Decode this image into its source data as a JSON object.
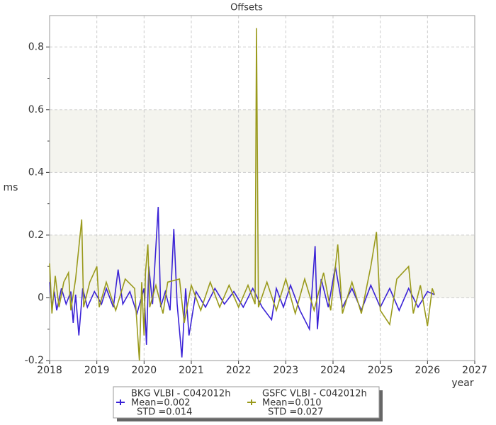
{
  "chart_data": {
    "type": "line",
    "title": "Offsets",
    "y_label": "ms",
    "x_label": "year",
    "xlim": [
      2018,
      2027
    ],
    "xticks": [
      2018,
      2019,
      2020,
      2021,
      2022,
      2023,
      2024,
      2025,
      2026,
      2027
    ],
    "ylim": [
      -0.2,
      0.9
    ],
    "yticks": [
      -0.2,
      0,
      0.2,
      0.4,
      0.6,
      0.8
    ],
    "grid": true,
    "series": [
      {
        "name": "BKG VLBI - C042012h",
        "mean_label": "Mean=0.002",
        "std_label": "STD =0.014",
        "color": "#3a22d6",
        "x": [
          2018.0,
          2018.05,
          2018.1,
          2018.15,
          2018.25,
          2018.35,
          2018.45,
          2018.5,
          2018.55,
          2018.62,
          2018.7,
          2018.8,
          2018.95,
          2019.1,
          2019.2,
          2019.35,
          2019.45,
          2019.55,
          2019.7,
          2019.85,
          2020.0,
          2020.05,
          2020.1,
          2020.18,
          2020.3,
          2020.35,
          2020.45,
          2020.55,
          2020.63,
          2020.7,
          2020.8,
          2020.88,
          2020.95,
          2021.1,
          2021.3,
          2021.5,
          2021.7,
          2021.9,
          2022.1,
          2022.3,
          2022.5,
          2022.7,
          2022.8,
          2022.95,
          2023.1,
          2023.3,
          2023.5,
          2023.62,
          2023.67,
          2023.75,
          2023.9,
          2024.05,
          2024.2,
          2024.4,
          2024.6,
          2024.8,
          2025.0,
          2025.2,
          2025.4,
          2025.6,
          2025.8,
          2026.0,
          2026.15
        ],
        "values": [
          0.05,
          -0.03,
          0.02,
          -0.04,
          0.03,
          -0.02,
          0.02,
          -0.08,
          0.01,
          -0.12,
          0.03,
          -0.03,
          0.02,
          -0.02,
          0.03,
          -0.03,
          0.09,
          -0.02,
          0.02,
          -0.05,
          0.03,
          -0.15,
          0.1,
          -0.02,
          0.29,
          -0.03,
          0.02,
          -0.04,
          0.22,
          -0.02,
          -0.19,
          0.03,
          -0.12,
          0.02,
          -0.03,
          0.03,
          -0.02,
          0.02,
          -0.03,
          0.03,
          -0.03,
          -0.07,
          0.03,
          -0.03,
          0.04,
          -0.04,
          -0.1,
          0.165,
          -0.1,
          0.06,
          -0.03,
          0.1,
          -0.03,
          0.03,
          -0.04,
          0.04,
          -0.03,
          0.03,
          -0.04,
          0.03,
          -0.03,
          0.02,
          0.01
        ]
      },
      {
        "name": "GSFC VLBI - C042012h",
        "mean_label": "Mean=0.010",
        "std_label": "STD =0.027",
        "color": "#9a9a1c",
        "x": [
          2018.0,
          2018.05,
          2018.12,
          2018.2,
          2018.3,
          2018.4,
          2018.45,
          2018.55,
          2018.68,
          2018.72,
          2018.85,
          2019.0,
          2019.05,
          2019.2,
          2019.4,
          2019.6,
          2019.8,
          2019.9,
          2019.95,
          2020.0,
          2020.03,
          2020.08,
          2020.12,
          2020.25,
          2020.4,
          2020.5,
          2020.75,
          2020.85,
          2021.0,
          2021.2,
          2021.4,
          2021.6,
          2021.8,
          2022.0,
          2022.2,
          2022.35,
          2022.38,
          2022.42,
          2022.6,
          2022.8,
          2023.0,
          2023.2,
          2023.4,
          2023.6,
          2023.8,
          2023.95,
          2024.1,
          2024.2,
          2024.4,
          2024.6,
          2024.8,
          2024.92,
          2025.0,
          2025.2,
          2025.35,
          2025.6,
          2025.7,
          2025.85,
          2026.0,
          2026.1,
          2026.15
        ],
        "values": [
          0.11,
          -0.05,
          0.07,
          -0.03,
          0.05,
          0.08,
          -0.04,
          0.06,
          0.25,
          -0.03,
          0.05,
          0.1,
          -0.03,
          0.05,
          -0.04,
          0.06,
          0.03,
          -0.2,
          0.05,
          -0.12,
          0.08,
          0.17,
          -0.03,
          0.04,
          -0.05,
          0.05,
          0.06,
          -0.08,
          0.04,
          -0.04,
          0.05,
          -0.03,
          0.04,
          -0.03,
          0.04,
          -0.02,
          0.86,
          -0.03,
          0.05,
          -0.04,
          0.06,
          -0.05,
          0.06,
          -0.04,
          0.08,
          -0.04,
          0.17,
          -0.05,
          0.05,
          -0.05,
          0.1,
          0.21,
          -0.04,
          -0.085,
          0.06,
          0.1,
          -0.05,
          0.04,
          -0.09,
          0.03,
          0.01
        ]
      }
    ]
  }
}
